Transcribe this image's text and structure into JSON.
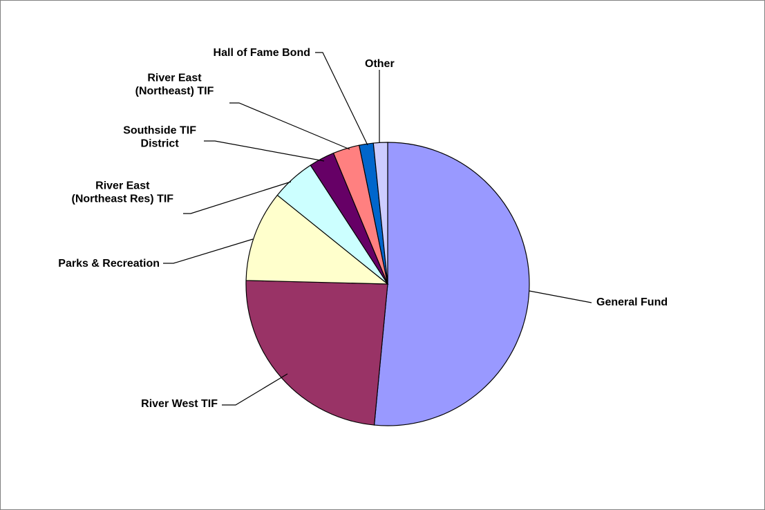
{
  "chart_data": {
    "type": "pie",
    "title": "",
    "start_angle_deg": 0,
    "direction": "clockwise",
    "slices": [
      {
        "label": [
          "General Fund"
        ],
        "value": 51.1,
        "color": "#9999ff"
      },
      {
        "label": [
          "River West TIF"
        ],
        "value": 23.7,
        "color": "#993366"
      },
      {
        "label": [
          "Parks & Recreation"
        ],
        "value": 10.3,
        "color": "#ffffcc"
      },
      {
        "label": [
          "River East",
          "(Northeast Res) TIF"
        ],
        "value": 5.0,
        "color": "#ccffff"
      },
      {
        "label": [
          "Southside TIF",
          "District"
        ],
        "value": 2.9,
        "color": "#660066"
      },
      {
        "label": [
          "River East",
          "(Northeast) TIF"
        ],
        "value": 3.0,
        "color": "#ff8080"
      },
      {
        "label": [
          "Hall of Fame Bond"
        ],
        "value": 1.6,
        "color": "#0066cc"
      },
      {
        "label": [
          "Other"
        ],
        "value": 1.6,
        "color": "#ccccff"
      }
    ],
    "legend": "none"
  }
}
